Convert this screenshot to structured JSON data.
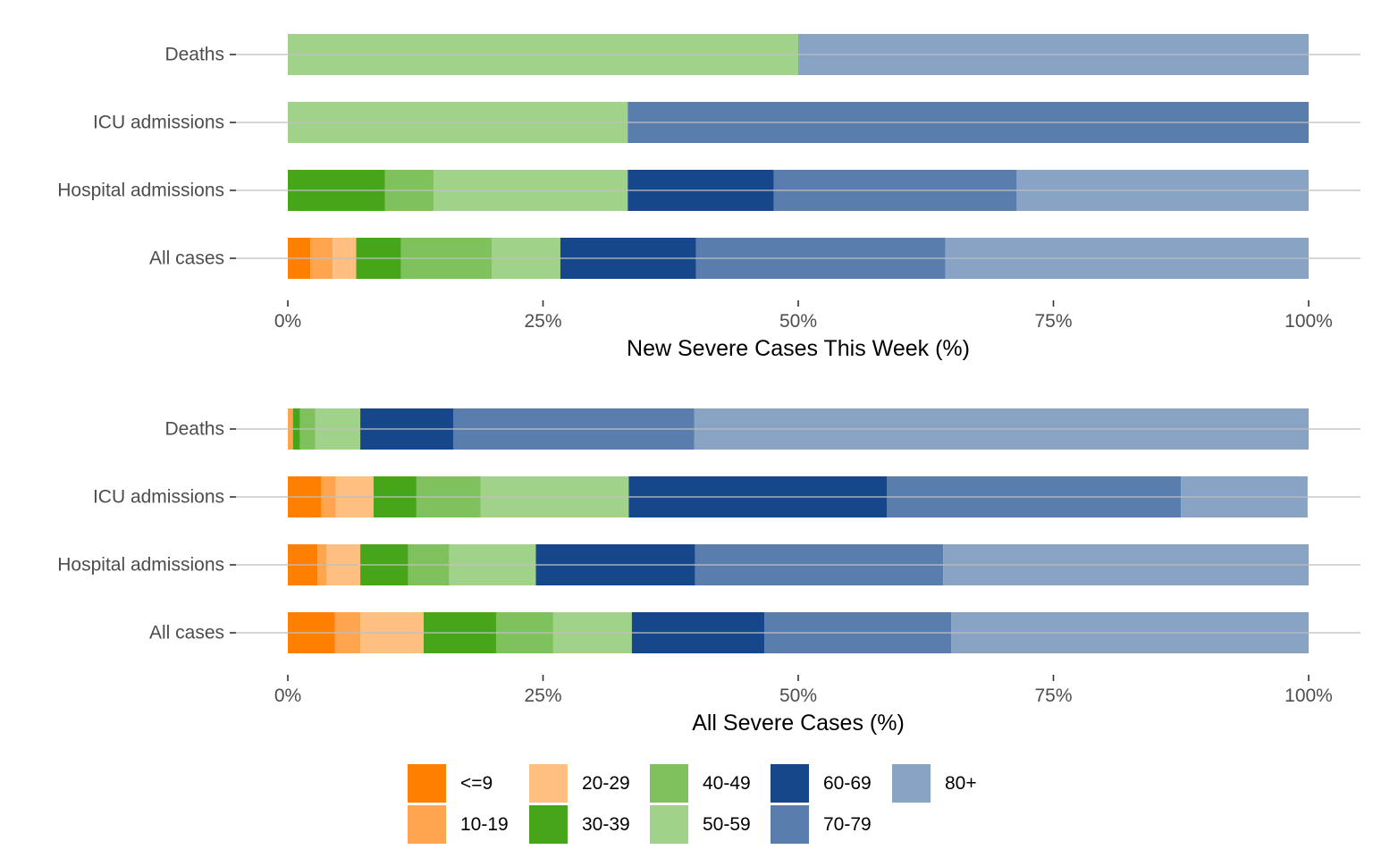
{
  "chart_data": [
    {
      "type": "bar",
      "orientation": "horizontal",
      "stacked": true,
      "title": "",
      "xlabel": "New Severe Cases This Week (%)",
      "ylabel": "",
      "xlim": [
        0,
        100
      ],
      "x_ticks": [
        "0%",
        "25%",
        "50%",
        "75%",
        "100%"
      ],
      "x_tick_values": [
        0,
        25,
        50,
        75,
        100
      ],
      "grid": true,
      "categories": [
        "Deaths",
        "ICU admissions",
        "Hospital admissions",
        "All cases"
      ],
      "series": [
        {
          "name": "<=9",
          "values": [
            0,
            0,
            0,
            2.2
          ]
        },
        {
          "name": "10-19",
          "values": [
            0,
            0,
            0,
            2.2
          ]
        },
        {
          "name": "20-29",
          "values": [
            0,
            0,
            0,
            2.3
          ]
        },
        {
          "name": "30-39",
          "values": [
            0,
            0,
            9.5,
            4.4
          ]
        },
        {
          "name": "40-49",
          "values": [
            0,
            0,
            4.8,
            8.9
          ]
        },
        {
          "name": "50-59",
          "values": [
            50.0,
            33.3,
            19.0,
            6.7
          ]
        },
        {
          "name": "60-69",
          "values": [
            0,
            0,
            14.3,
            13.3
          ]
        },
        {
          "name": "70-79",
          "values": [
            0,
            66.7,
            23.8,
            24.4
          ]
        },
        {
          "name": "80+",
          "values": [
            50.0,
            0,
            28.6,
            35.6
          ]
        }
      ]
    },
    {
      "type": "bar",
      "orientation": "horizontal",
      "stacked": true,
      "title": "",
      "xlabel": "All Severe Cases (%)",
      "ylabel": "",
      "xlim": [
        0,
        100
      ],
      "x_ticks": [
        "0%",
        "25%",
        "50%",
        "75%",
        "100%"
      ],
      "x_tick_values": [
        0,
        25,
        50,
        75,
        100
      ],
      "grid": true,
      "categories": [
        "Deaths",
        "ICU admissions",
        "Hospital admissions",
        "All cases"
      ],
      "series": [
        {
          "name": "<=9",
          "values": [
            0,
            3.3,
            2.9,
            4.6
          ]
        },
        {
          "name": "10-19",
          "values": [
            0.5,
            1.4,
            0.9,
            2.5
          ]
        },
        {
          "name": "20-29",
          "values": [
            0,
            3.7,
            3.3,
            6.2
          ]
        },
        {
          "name": "30-39",
          "values": [
            0.7,
            4.2,
            4.7,
            7.1
          ]
        },
        {
          "name": "40-49",
          "values": [
            1.5,
            6.3,
            4.0,
            5.6
          ]
        },
        {
          "name": "50-59",
          "values": [
            4.4,
            14.5,
            8.5,
            7.7
          ]
        },
        {
          "name": "60-69",
          "values": [
            9.1,
            25.3,
            15.6,
            13.0
          ]
        },
        {
          "name": "70-79",
          "values": [
            23.6,
            28.8,
            24.3,
            18.3
          ]
        },
        {
          "name": "80+",
          "values": [
            60.2,
            12.4,
            35.8,
            35.0
          ]
        }
      ]
    }
  ],
  "legend": {
    "position": "bottom",
    "items": [
      {
        "label": "<=9",
        "color": "#FF7F00"
      },
      {
        "label": "10-19",
        "color": "#FFA54F"
      },
      {
        "label": "20-29",
        "color": "#FFBF80"
      },
      {
        "label": "30-39",
        "color": "#46A519"
      },
      {
        "label": "40-49",
        "color": "#7FC15D"
      },
      {
        "label": "50-59",
        "color": "#A1D28A"
      },
      {
        "label": "60-69",
        "color": "#15478A"
      },
      {
        "label": "70-79",
        "color": "#597DAD"
      },
      {
        "label": "80+",
        "color": "#88A3C4"
      }
    ]
  }
}
